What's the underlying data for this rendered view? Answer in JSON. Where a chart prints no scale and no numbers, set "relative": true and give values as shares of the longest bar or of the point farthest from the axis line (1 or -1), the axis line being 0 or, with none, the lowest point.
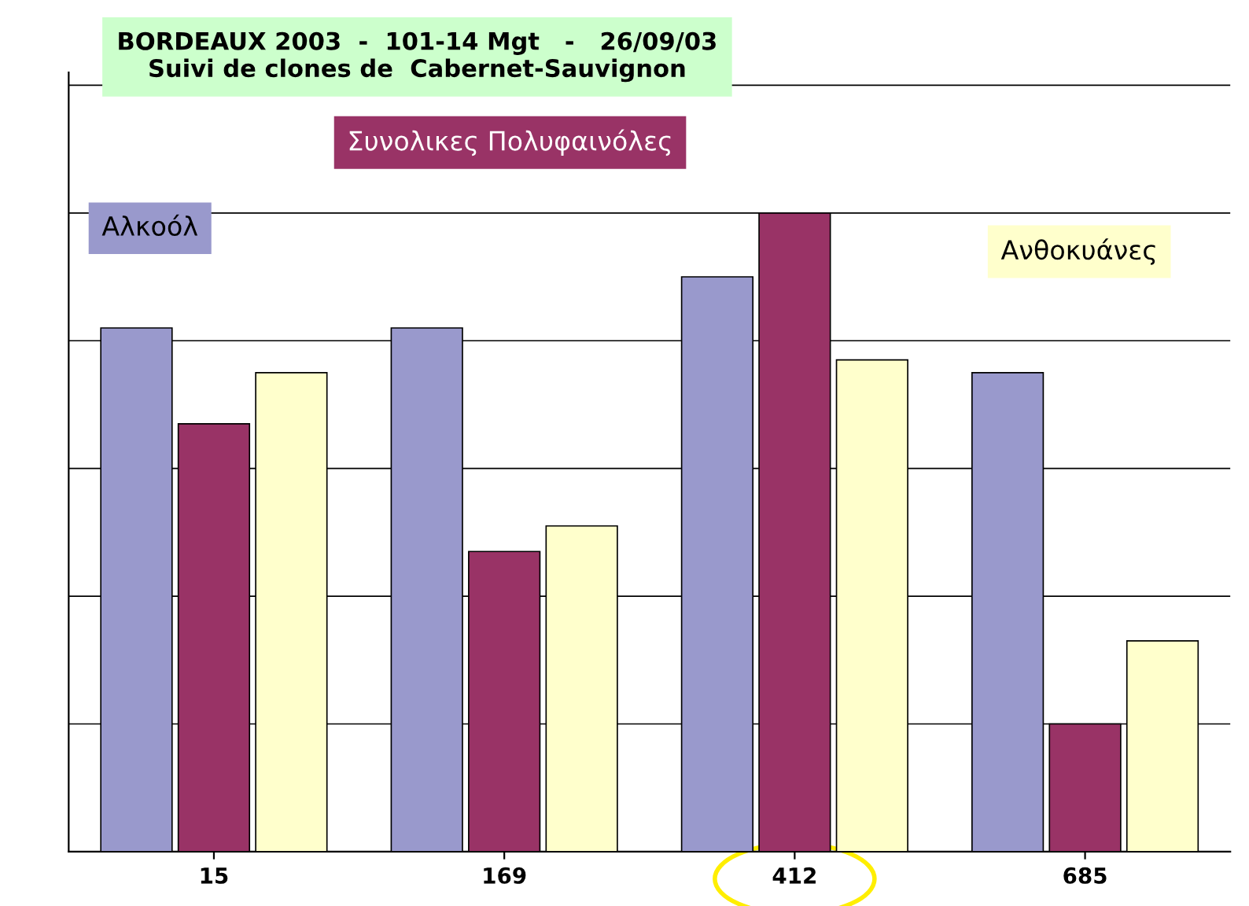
{
  "chart_data": {
    "type": "bar",
    "title": "BORDEAUX 2003  -  101-14 Mgt   -   26/09/03\nSuivi de clones de  Cabernet-Sauvignon",
    "categories": [
      "15",
      "169",
      "412",
      "685"
    ],
    "relative": true,
    "grid": "y",
    "series": [
      {
        "name": "Αλκοόλ",
        "color": "#9999cc",
        "values": [
          0.82,
          0.82,
          0.9,
          0.75
        ]
      },
      {
        "name": "Συνολικες Πολυφαινόλες",
        "color": "#993366",
        "values": [
          0.67,
          0.47,
          1.0,
          0.2
        ]
      },
      {
        "name": "Ανθοκυάνες",
        "color": "#ffffcc",
        "values": [
          0.75,
          0.51,
          0.77,
          0.33
        ]
      }
    ]
  }
}
